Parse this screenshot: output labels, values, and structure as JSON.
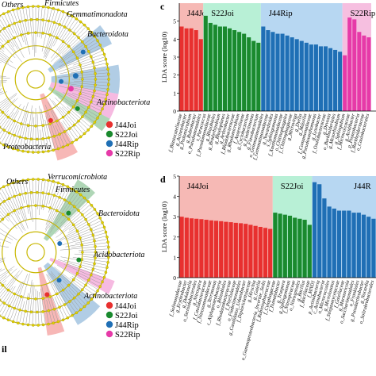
{
  "colors": {
    "J44Joi": "#e8302f",
    "S22Joi": "#1a8a2e",
    "J44Rip": "#1f6fb5",
    "S22Rip": "#e63aa8",
    "J44Joi_band": "#f6b9b5",
    "S22Joi_band": "#b8f0d6",
    "J44Rip_band": "#b7d7f2",
    "S22Rip_band": "#f6bfe0",
    "ring": "#c8b700",
    "node": "#e3d200"
  },
  "clado_top": {
    "taxa_labels": [
      "Others",
      "Firmicutes",
      "Gemmatimonadota",
      "Bacteroidota",
      "Actinobacteriota",
      "Proteobacteria"
    ],
    "legend": [
      "J44Joi",
      "S22Joi",
      "J44Rip",
      "S22Rip"
    ]
  },
  "clado_bottom": {
    "panel_letter": "il",
    "taxa_labels": [
      "Others",
      "Verrucomicrobiota",
      "Firmicutes",
      "Bacteroidota",
      "Acidobacteriota",
      "Actinobacteriota"
    ],
    "legend": [
      "J44Joi",
      "S22Joi",
      "J44Rip",
      "S22Rip"
    ]
  },
  "chart_data": [
    {
      "type": "bar",
      "panel": "c",
      "ylabel": "LDA score (log10)",
      "groups": [
        {
          "name": "J44Joi",
          "count": 5
        },
        {
          "name": "S22Joi",
          "count": 12
        },
        {
          "name": "J44Rip",
          "count": 17
        },
        {
          "name": "S22Rip",
          "count": 6
        }
      ],
      "categories": [
        "f_Blastocatellaceae",
        "g_Acinetobacter",
        "g_Pedomicrobium",
        "g_Rubrobacter",
        "o_Pseudomonadales",
        "s_Paracoccus",
        "f_Pseudomonadaceae",
        "g_Rhizobiales",
        "g_Bradyrhizobium",
        "g_Rhodoplanes",
        "g_Arthrobacter",
        "f_Rhodobacteraceae",
        "g_Rhodomicrobium",
        "f_Anaerolineae",
        "g_Cyclobacterium",
        "g_Fimbriimonas",
        "g_Flavobacterium",
        "o_Gemmatimonadales",
        "f_Gemmatimonadaceae",
        "g_Nocardioides",
        "s_Sphingomonas",
        "f_Xanthomonadaceae",
        "o_Chitinophagales",
        "f_Chitinophagaceae",
        "g_Microvirga",
        "g_Dyella",
        "g_Massilia",
        "f_Comamonadaceae",
        "g_Pseudoxanthomonas",
        "g_Lysobacter",
        "f_Oxalobacteraceae",
        "g_Devosia",
        "o_Burkholderiales",
        "g_Mesorhizobium",
        "g_Sphingobium",
        "f_Micrococcaceae",
        "g_Acidibacter",
        "p_Proteobacteria",
        "f_Burkholderiaceae",
        "o_Caulobacterales",
        "g_Roseomonas"
      ],
      "values": [
        4.7,
        4.6,
        4.6,
        4.5,
        4.0,
        5.3,
        4.9,
        4.8,
        4.7,
        4.7,
        4.6,
        4.5,
        4.4,
        4.3,
        4.1,
        3.9,
        3.8,
        4.7,
        4.5,
        4.4,
        4.3,
        4.3,
        4.2,
        4.1,
        4.0,
        3.9,
        3.8,
        3.7,
        3.7,
        3.6,
        3.6,
        3.5,
        3.4,
        3.3,
        3.1,
        5.2,
        5.1,
        4.4,
        4.2,
        4.1,
        3.9
      ]
    },
    {
      "type": "bar",
      "panel": "d",
      "ylabel": "LDA score (log10)",
      "groups": [
        {
          "name": "J44Joi",
          "count": 19
        },
        {
          "name": "S22Joi",
          "count": 8
        },
        {
          "name": "J44R",
          "count": 13
        }
      ],
      "categories": [
        "f_Solimonadaceae",
        "g_Erythrobacter",
        "g_Dokdonella",
        "o_Steroidobacterales",
        "g_Nitrospira",
        "f_Caulobacteraceae",
        "f_Nitrosomonadaceae",
        "g_Terrimonas",
        "c_Alphaproteobacteria",
        "o_Rhizobiales",
        "f_Rhodanobacteraceae",
        "f_Pirellulaceae",
        "o_Fimbriimonadales",
        "g_Candidatus_Udaeobacter",
        "f_Diplorickettsiaceae",
        "g_Hirschia",
        "g_Gaiella",
        "o_Gammaproteobacteria_Incertae_Sedis",
        "f_Rubinisphaeraceae",
        "f_Cytophagaceae",
        "f_Ilumatobacter",
        "g_Truepera",
        "g_Sphingomonas",
        "f_Nitrospiraceae",
        "o_Nitrospirales",
        "g_Bacillus",
        "f_Bacillaceae",
        "f_MND1",
        "p_Actinobacteria",
        "c_Actinobacteria",
        "o_Micrococcales",
        "g_Microlunatus",
        "f_Streptomycetaceae",
        "f_Gaiellaceae",
        "g_Marmoricola",
        "o_Saccharimonadales",
        "o_Frankiales",
        "g_Pseudarthrobacter",
        "g_Nocardia",
        "o_Solirubrobacterales"
      ],
      "values": [
        3.0,
        2.95,
        2.92,
        2.9,
        2.88,
        2.85,
        2.82,
        2.8,
        2.78,
        2.75,
        2.73,
        2.7,
        2.68,
        2.65,
        2.6,
        2.55,
        2.5,
        2.45,
        2.4,
        3.2,
        3.15,
        3.1,
        3.05,
        2.95,
        2.9,
        2.85,
        2.6,
        4.7,
        4.6,
        3.9,
        3.5,
        3.4,
        3.3,
        3.3,
        3.3,
        3.2,
        3.2,
        3.1,
        3.0,
        2.9
      ]
    }
  ]
}
